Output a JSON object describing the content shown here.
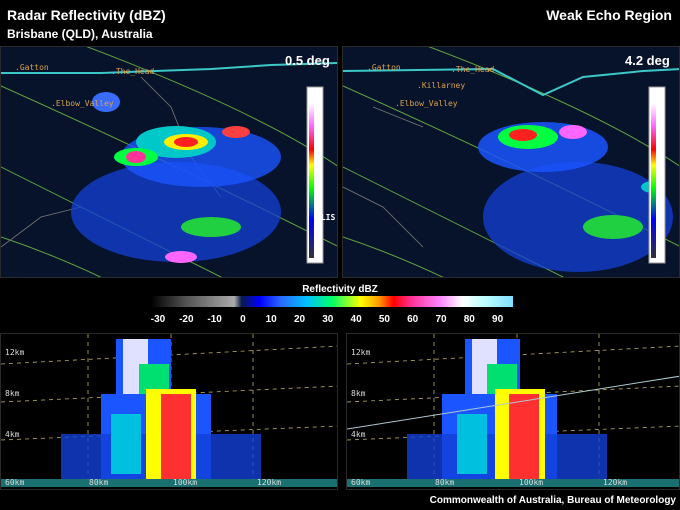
{
  "header": {
    "title_left": "Radar Reflectivity (dBZ)",
    "subtitle_left": "Brisbane (QLD), Australia",
    "title_right": "Weak Echo Region"
  },
  "panels": {
    "left_ppi": {
      "elevation": "0.5 deg",
      "labels": [
        ".Gatton",
        ".The_Head",
        ".Elbow_Valley",
        ".LIS"
      ]
    },
    "right_ppi": {
      "elevation": "4.2 deg",
      "labels": [
        ".Gatton",
        ".The_Head",
        ".Killarney",
        ".Elbow_Valley"
      ]
    },
    "left_rhi": {
      "height_labels": [
        "12km",
        "8km",
        "4km"
      ],
      "range_labels": [
        "60km",
        "80km",
        "100km",
        "120km"
      ]
    },
    "right_rhi": {
      "height_labels": [
        "12km",
        "8km",
        "4km"
      ],
      "range_labels": [
        "60km",
        "80km",
        "100km",
        "120km"
      ]
    }
  },
  "scale": {
    "title": "Reflectivity dBZ",
    "ticks": [
      "-30",
      "-20",
      "-10",
      "0",
      "10",
      "20",
      "30",
      "40",
      "50",
      "60",
      "70",
      "80",
      "90"
    ]
  },
  "footer": {
    "credit": "Commonwealth of Australia, Bureau of Meteorology"
  },
  "colors": {
    "background": "#000000",
    "map_bg": "#07132a",
    "range_ring": "#7ac943",
    "border_line": "#3cc8c8",
    "place_label": "#d9a24c"
  }
}
